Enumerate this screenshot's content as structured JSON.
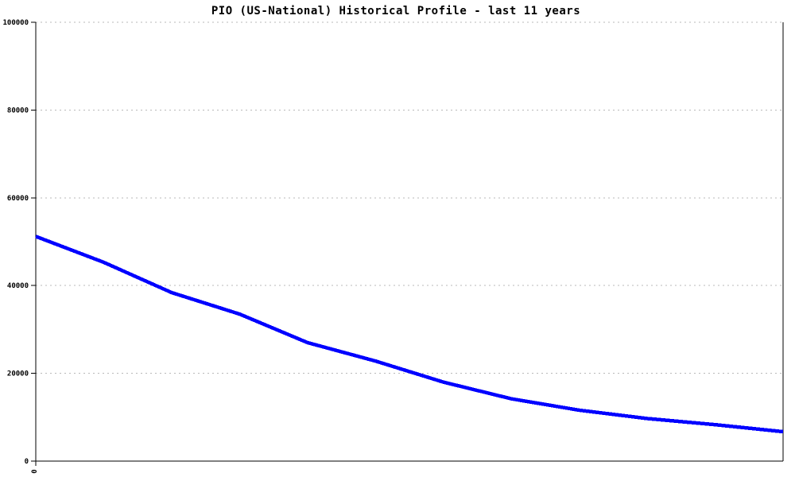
{
  "chart_data": {
    "type": "line",
    "title": "PIO (US-National) Historical Profile - last 11 years",
    "xlabel": "",
    "ylabel": "",
    "x": [
      0,
      1,
      2,
      3,
      4,
      5,
      6,
      7,
      8,
      9,
      10,
      11
    ],
    "series": [
      {
        "name": "PIO (US-National)",
        "color": "#0000ff",
        "values": [
          51200,
          45300,
          38400,
          33500,
          27000,
          22800,
          18000,
          14200,
          11600,
          9700,
          8300,
          6700
        ]
      }
    ],
    "xlim": [
      0,
      11
    ],
    "ylim": [
      0,
      100000
    ],
    "yticks": [
      0,
      20000,
      40000,
      60000,
      80000,
      100000
    ],
    "ytick_labels": [
      "0",
      "20000",
      "40000",
      "60000",
      "80000",
      "100000"
    ],
    "xticks": [
      {
        "value": 0,
        "label": "0",
        "rotated": true
      }
    ],
    "grid": "horizontal-dotted",
    "legend": "none",
    "colors": {
      "line": "#0000ff",
      "axis": "#000000",
      "grid": "#b9b9b9",
      "background": "#ffffff",
      "text": "#000000"
    }
  }
}
